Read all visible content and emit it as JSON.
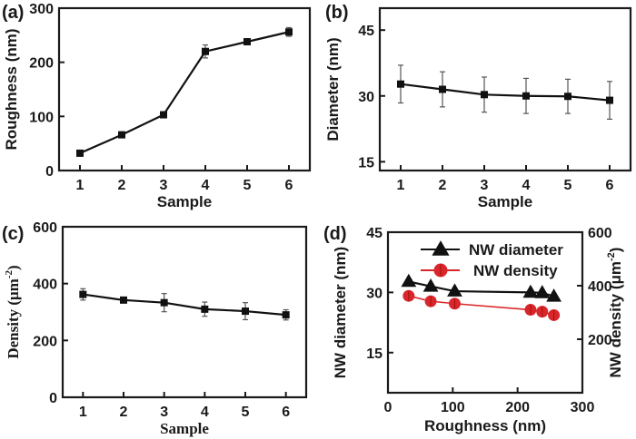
{
  "chart_data": [
    {
      "id": "a",
      "panel_label": "(a)",
      "type": "line",
      "title": "",
      "xlabel": "Sample",
      "ylabel": "Roughness (nm)",
      "x": [
        1,
        2,
        3,
        4,
        5,
        6
      ],
      "xticks": [
        "1",
        "2",
        "3",
        "4",
        "5",
        "6"
      ],
      "xlim": [
        0.5,
        6.5
      ],
      "ylim": [
        0,
        300
      ],
      "yticks": [
        0,
        100,
        200,
        300
      ],
      "grid": false,
      "series": [
        {
          "name": "Roughness",
          "values": [
            32,
            66,
            103,
            220,
            238,
            256
          ],
          "errors": [
            3,
            4,
            3,
            12,
            4,
            8
          ],
          "marker": "square",
          "color": "#111111"
        }
      ]
    },
    {
      "id": "b",
      "panel_label": "(b)",
      "type": "line",
      "title": "",
      "xlabel": "Sample",
      "ylabel": "Diameter (nm)",
      "x": [
        1,
        2,
        3,
        4,
        5,
        6
      ],
      "xticks": [
        "1",
        "2",
        "3",
        "4",
        "5",
        "6"
      ],
      "xlim": [
        0.5,
        6.5
      ],
      "ylim": [
        13,
        50
      ],
      "yticks": [
        15,
        30,
        45
      ],
      "grid": false,
      "series": [
        {
          "name": "Diameter",
          "values": [
            32.7,
            31.5,
            30.3,
            30.0,
            29.9,
            29.0
          ],
          "errors": [
            4.3,
            4.0,
            4.0,
            4.0,
            3.9,
            4.3
          ],
          "marker": "square",
          "color": "#111111"
        }
      ]
    },
    {
      "id": "c",
      "panel_label": "(c)",
      "type": "line",
      "title": "",
      "xlabel": "Sample",
      "ylabel": "Density (μm",
      "ylabel_sup": "-2",
      "ylabel_tail": ")",
      "x": [
        1,
        2,
        3,
        4,
        5,
        6
      ],
      "xticks": [
        "1",
        "2",
        "3",
        "4",
        "5",
        "6"
      ],
      "xlim": [
        0.5,
        6.5
      ],
      "ylim": [
        0,
        600
      ],
      "yticks": [
        0,
        200,
        400,
        600
      ],
      "grid": false,
      "series": [
        {
          "name": "Density",
          "values": [
            362,
            342,
            333,
            310,
            303,
            290
          ],
          "errors": [
            20,
            5,
            32,
            25,
            30,
            18
          ],
          "marker": "square",
          "color": "#111111"
        }
      ]
    },
    {
      "id": "d",
      "panel_label": "(d)",
      "type": "line",
      "title": "",
      "xlabel": "Roughness (nm)",
      "ylabel": "NW diameter (nm)",
      "ylabel_right": "NW density (μm",
      "ylabel_right_sup": "-2",
      "ylabel_right_tail": ")",
      "xlim": [
        0,
        300
      ],
      "xticks": [
        0,
        100,
        200,
        300
      ],
      "ylim": [
        5,
        45
      ],
      "yticks": [
        15,
        30,
        45
      ],
      "ylim_right": [
        0,
        600
      ],
      "yticks_right": [
        200,
        400,
        600
      ],
      "grid": false,
      "legend_position": "top-right",
      "series": [
        {
          "name": "NW diameter",
          "axis": "left",
          "x": [
            32,
            66,
            103,
            220,
            238,
            256
          ],
          "values": [
            32.7,
            31.5,
            30.3,
            30.0,
            29.9,
            29.0
          ],
          "marker": "triangle",
          "color": "#111111"
        },
        {
          "name": "NW density",
          "axis": "right",
          "x": [
            32,
            66,
            103,
            220,
            238,
            256
          ],
          "values": [
            362,
            342,
            333,
            310,
            303,
            290
          ],
          "marker": "circle",
          "color": "#d9262a"
        }
      ]
    }
  ]
}
